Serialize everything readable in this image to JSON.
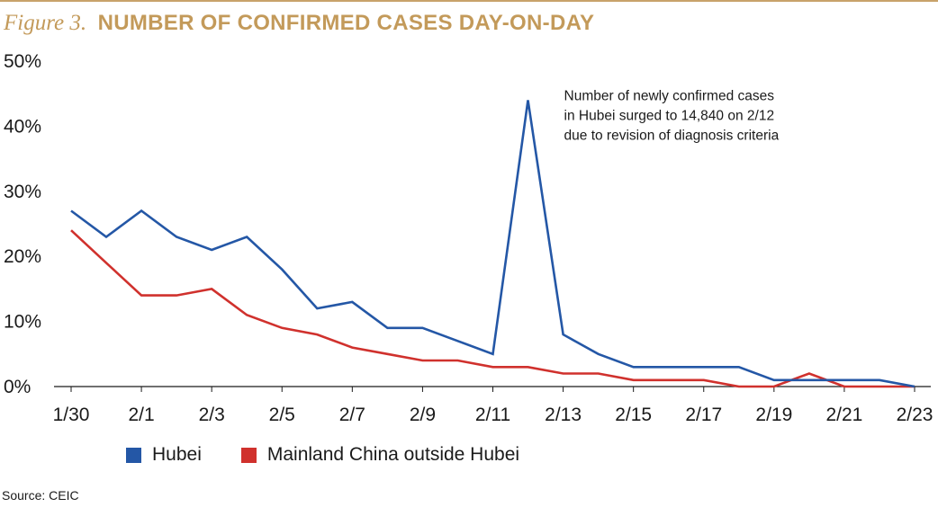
{
  "figure": {
    "label": "Figure 3.",
    "title": "NUMBER OF CONFIRMED CASES DAY-ON-DAY"
  },
  "source": "Source: CEIC",
  "colors": {
    "title": "#c39a5a",
    "rule": "#c8a26a",
    "hubei": "#2457a6",
    "outside": "#d0312d",
    "axis": "#1a1a1a"
  },
  "chart_data": {
    "type": "line",
    "title": "NUMBER OF CONFIRMED CASES DAY-ON-DAY",
    "xlabel": "",
    "ylabel": "",
    "ylim": [
      0,
      50
    ],
    "yticks": [
      0,
      10,
      20,
      30,
      40,
      50
    ],
    "ytick_labels": [
      "0%",
      "10%",
      "20%",
      "30%",
      "40%",
      "50%"
    ],
    "grid": false,
    "legend_position": "bottom-left",
    "categories": [
      "1/30",
      "1/31",
      "2/1",
      "2/2",
      "2/3",
      "2/4",
      "2/5",
      "2/6",
      "2/7",
      "2/8",
      "2/9",
      "2/10",
      "2/11",
      "2/12",
      "2/13",
      "2/14",
      "2/15",
      "2/16",
      "2/17",
      "2/18",
      "2/19",
      "2/20",
      "2/21",
      "2/22",
      "2/23"
    ],
    "xtick_labels": [
      "1/30",
      "2/1",
      "2/3",
      "2/5",
      "2/7",
      "2/9",
      "2/11",
      "2/13",
      "2/15",
      "2/17",
      "2/19",
      "2/21",
      "2/23"
    ],
    "series": [
      {
        "name": "Hubei",
        "color": "#2457a6",
        "values": [
          27,
          23,
          27,
          23,
          21,
          23,
          18,
          12,
          13,
          9,
          9,
          7,
          5,
          44,
          8,
          5,
          3,
          3,
          3,
          3,
          1,
          1,
          1,
          1,
          0
        ]
      },
      {
        "name": "Mainland China outside Hubei",
        "color": "#d0312d",
        "values": [
          24,
          19,
          14,
          14,
          15,
          11,
          9,
          8,
          6,
          5,
          4,
          4,
          3,
          3,
          2,
          2,
          1,
          1,
          1,
          0,
          0,
          2,
          0,
          0,
          0
        ]
      }
    ],
    "annotation": {
      "lines": [
        "Number of newly confirmed cases",
        "in Hubei surged to 14,840 on 2/12",
        "due to revision of diagnosis criteria"
      ],
      "anchor_category": "2/12"
    }
  }
}
